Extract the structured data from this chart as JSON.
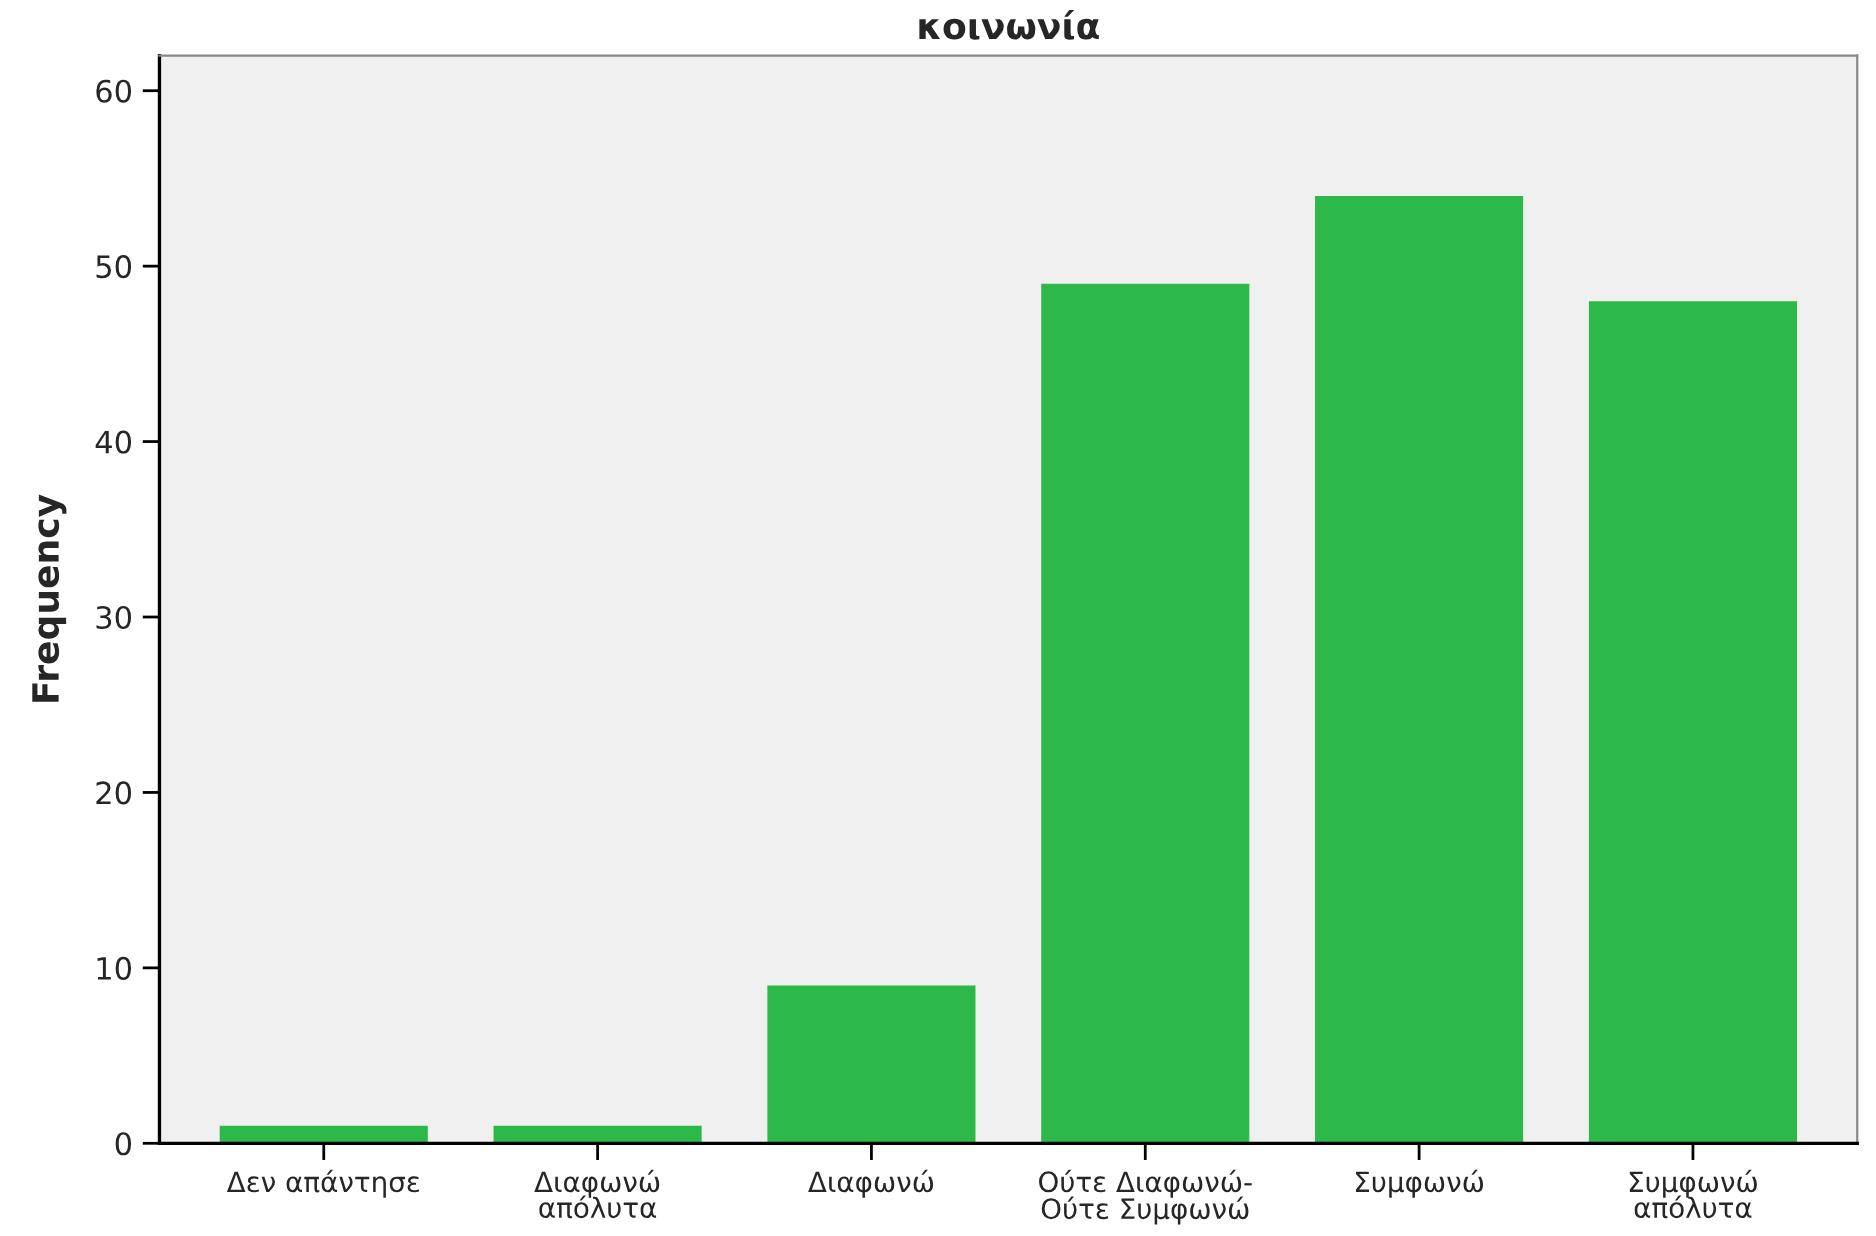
{
  "chart_data": {
    "type": "bar",
    "title": "κοινωνία",
    "ylabel": "Frequency",
    "categories": [
      "Δεν απάντησε",
      "Διαφωνώ\nαπόλυτα",
      "Διαφωνώ",
      "Ούτε Διαφωνώ-\nΟύτε Συμφωνώ",
      "Συμφωνώ",
      "Συμφωνώ\nαπόλυτα"
    ],
    "values": [
      1,
      1,
      9,
      49,
      54,
      48
    ],
    "color": "#2db84a",
    "ylim": [
      0,
      62
    ],
    "yticks": [
      0,
      10,
      20,
      30,
      40,
      50,
      60
    ],
    "grid": false,
    "legend": false
  }
}
